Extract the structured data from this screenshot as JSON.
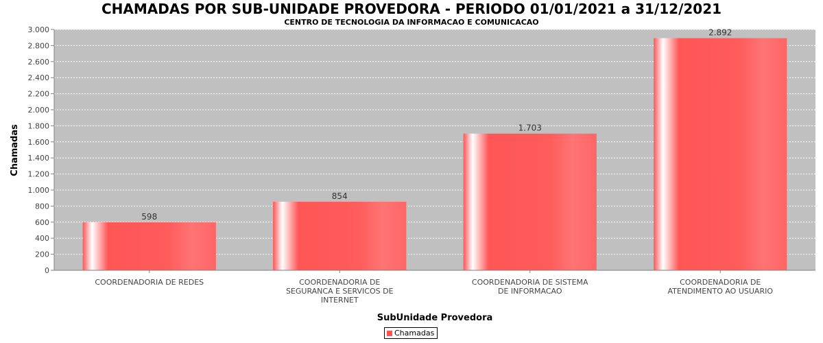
{
  "chart_data": {
    "type": "bar",
    "title": "CHAMADAS POR SUB-UNIDADE PROVEDORA - PERIODO 01/01/2021 a 31/12/2021",
    "subtitle": "CENTRO DE TECNOLOGIA DA INFORMACAO E COMUNICACAO",
    "xlabel": "SubUnidade Provedora",
    "ylabel": "Chamadas",
    "categories": [
      [
        "COORDENADORIA DE REDES"
      ],
      [
        "COORDENADORIA DE",
        "SEGURANCA E SERVICOS DE",
        "INTERNET"
      ],
      [
        "COORDENADORIA DE SISTEMA",
        "DE INFORMACAO"
      ],
      [
        "COORDENADORIA DE",
        "ATENDIMENTO AO USUARIO"
      ]
    ],
    "series": [
      {
        "name": "Chamadas",
        "values": [
          598,
          854,
          1703,
          2892
        ],
        "labels": [
          "598",
          "854",
          "1.703",
          "2.892"
        ],
        "color": "#ff5555"
      }
    ],
    "ylim": [
      0,
      3000
    ],
    "yticks": [
      0,
      200,
      400,
      600,
      800,
      1000,
      1200,
      1400,
      1600,
      1800,
      2000,
      2200,
      2400,
      2600,
      2800,
      3000
    ],
    "ytick_labels": [
      "0",
      "200",
      "400",
      "600",
      "800",
      "1.000",
      "1.200",
      "1.400",
      "1.600",
      "1.800",
      "2.000",
      "2.200",
      "2.400",
      "2.600",
      "2.800",
      "3.000"
    ],
    "grid": true,
    "plot_background": "#c0c0c0",
    "legend": "bottom-center"
  }
}
